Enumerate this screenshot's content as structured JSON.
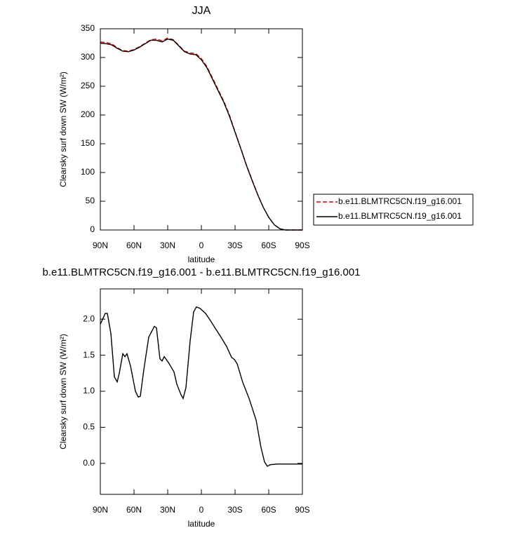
{
  "chart_data": [
    {
      "type": "line",
      "title": "JJA",
      "xlabel": "latitude",
      "ylabel": "Clearsky surf down SW (W/m²)",
      "x": [
        90,
        85,
        80,
        75,
        70,
        65,
        60,
        55,
        50,
        45,
        40,
        35,
        30,
        25,
        20,
        15,
        10,
        5,
        0,
        -5,
        -10,
        -15,
        -20,
        -25,
        -30,
        -35,
        -40,
        -45,
        -50,
        -55,
        -60,
        -65,
        -70,
        -75,
        -80,
        -85,
        -90
      ],
      "series": [
        {
          "name": "b.e11.BLMTRC5CN.f19_g16.001",
          "color": "#e00000",
          "dash": true,
          "values": [
            327,
            326,
            324,
            317,
            312,
            311,
            314,
            319,
            325,
            331,
            332,
            329,
            334,
            331,
            321,
            311,
            308,
            307,
            298,
            284,
            264,
            244,
            224,
            200,
            171,
            143,
            114,
            88,
            63,
            40,
            22,
            9,
            2,
            0,
            0,
            0,
            0
          ]
        },
        {
          "name": "b.e11.BLMTRC5CN.f19_g16.001",
          "color": "#000000",
          "dash": false,
          "values": [
            325,
            324,
            322,
            316,
            311,
            310,
            313,
            318,
            324,
            330,
            330,
            327,
            332,
            330,
            320,
            310,
            306,
            305,
            296,
            282,
            262,
            242,
            222,
            198,
            170,
            142,
            113,
            87,
            62,
            40,
            22,
            9,
            2,
            0,
            0,
            0,
            0
          ]
        }
      ],
      "xlim": [
        90,
        -90
      ],
      "xticks": [
        {
          "value": 90,
          "label": "90N"
        },
        {
          "value": 60,
          "label": "60N"
        },
        {
          "value": 30,
          "label": "30N"
        },
        0,
        {
          "value": -30,
          "label": "30S"
        },
        {
          "value": -60,
          "label": "60S"
        },
        {
          "value": -90,
          "label": "90S"
        }
      ],
      "ylim": [
        0,
        350
      ],
      "yticks": [
        0,
        50,
        100,
        150,
        200,
        250,
        300,
        350
      ],
      "legend": "right"
    },
    {
      "type": "line",
      "title": "b.e11.BLMTRC5CN.f19_g16.001 - b.e11.BLMTRC5CN.f19_g16.001",
      "xlabel": "latitude",
      "ylabel": "Clearsky surf down SW (W/m²)",
      "x": [
        90,
        85.6,
        83.75,
        80.6,
        77.5,
        75,
        73.1,
        70,
        68.1,
        66.25,
        63.1,
        58.75,
        56.25,
        54.4,
        51.25,
        46.9,
        41.9,
        40,
        36.9,
        35,
        33.1,
        29.4,
        24.4,
        21.9,
        18.1,
        16.25,
        13.75,
        10,
        6.9,
        4.4,
        1.25,
        -3.75,
        -8.1,
        -12.5,
        -17.5,
        -22.5,
        -26.9,
        -29.4,
        -31.9,
        -36.9,
        -42.5,
        -48.75,
        -53.1,
        -56.25,
        -58.75,
        -61.25,
        -67.5,
        -90
      ],
      "series": [
        {
          "color": "#000000",
          "dash": false,
          "values": [
            1.93,
            2.08,
            2.08,
            1.8,
            1.2,
            1.13,
            1.25,
            1.52,
            1.48,
            1.52,
            1.35,
            1.0,
            0.92,
            0.93,
            1.3,
            1.75,
            1.9,
            1.88,
            1.45,
            1.42,
            1.48,
            1.4,
            1.27,
            1.1,
            0.95,
            0.9,
            1.05,
            1.7,
            2.1,
            2.17,
            2.15,
            2.08,
            1.98,
            1.87,
            1.75,
            1.62,
            1.47,
            1.44,
            1.38,
            1.12,
            0.9,
            0.6,
            0.22,
            0.02,
            -0.04,
            -0.02,
            -0.01,
            -0.01
          ]
        }
      ],
      "xlim": [
        90,
        -90
      ],
      "xticks": [
        {
          "value": 90,
          "label": "90N"
        },
        {
          "value": 60,
          "label": "60N"
        },
        {
          "value": 30,
          "label": "30N"
        },
        0,
        {
          "value": -30,
          "label": "30S"
        },
        {
          "value": -60,
          "label": "60S"
        },
        {
          "value": -90,
          "label": "90S"
        }
      ],
      "ylim": [
        -0.43,
        2.42
      ],
      "yticks": [
        {
          "value": 0,
          "label": "0.0"
        },
        0.5,
        {
          "value": 1,
          "label": "1.0"
        },
        1.5,
        {
          "value": 2,
          "label": "2.0"
        }
      ]
    }
  ]
}
